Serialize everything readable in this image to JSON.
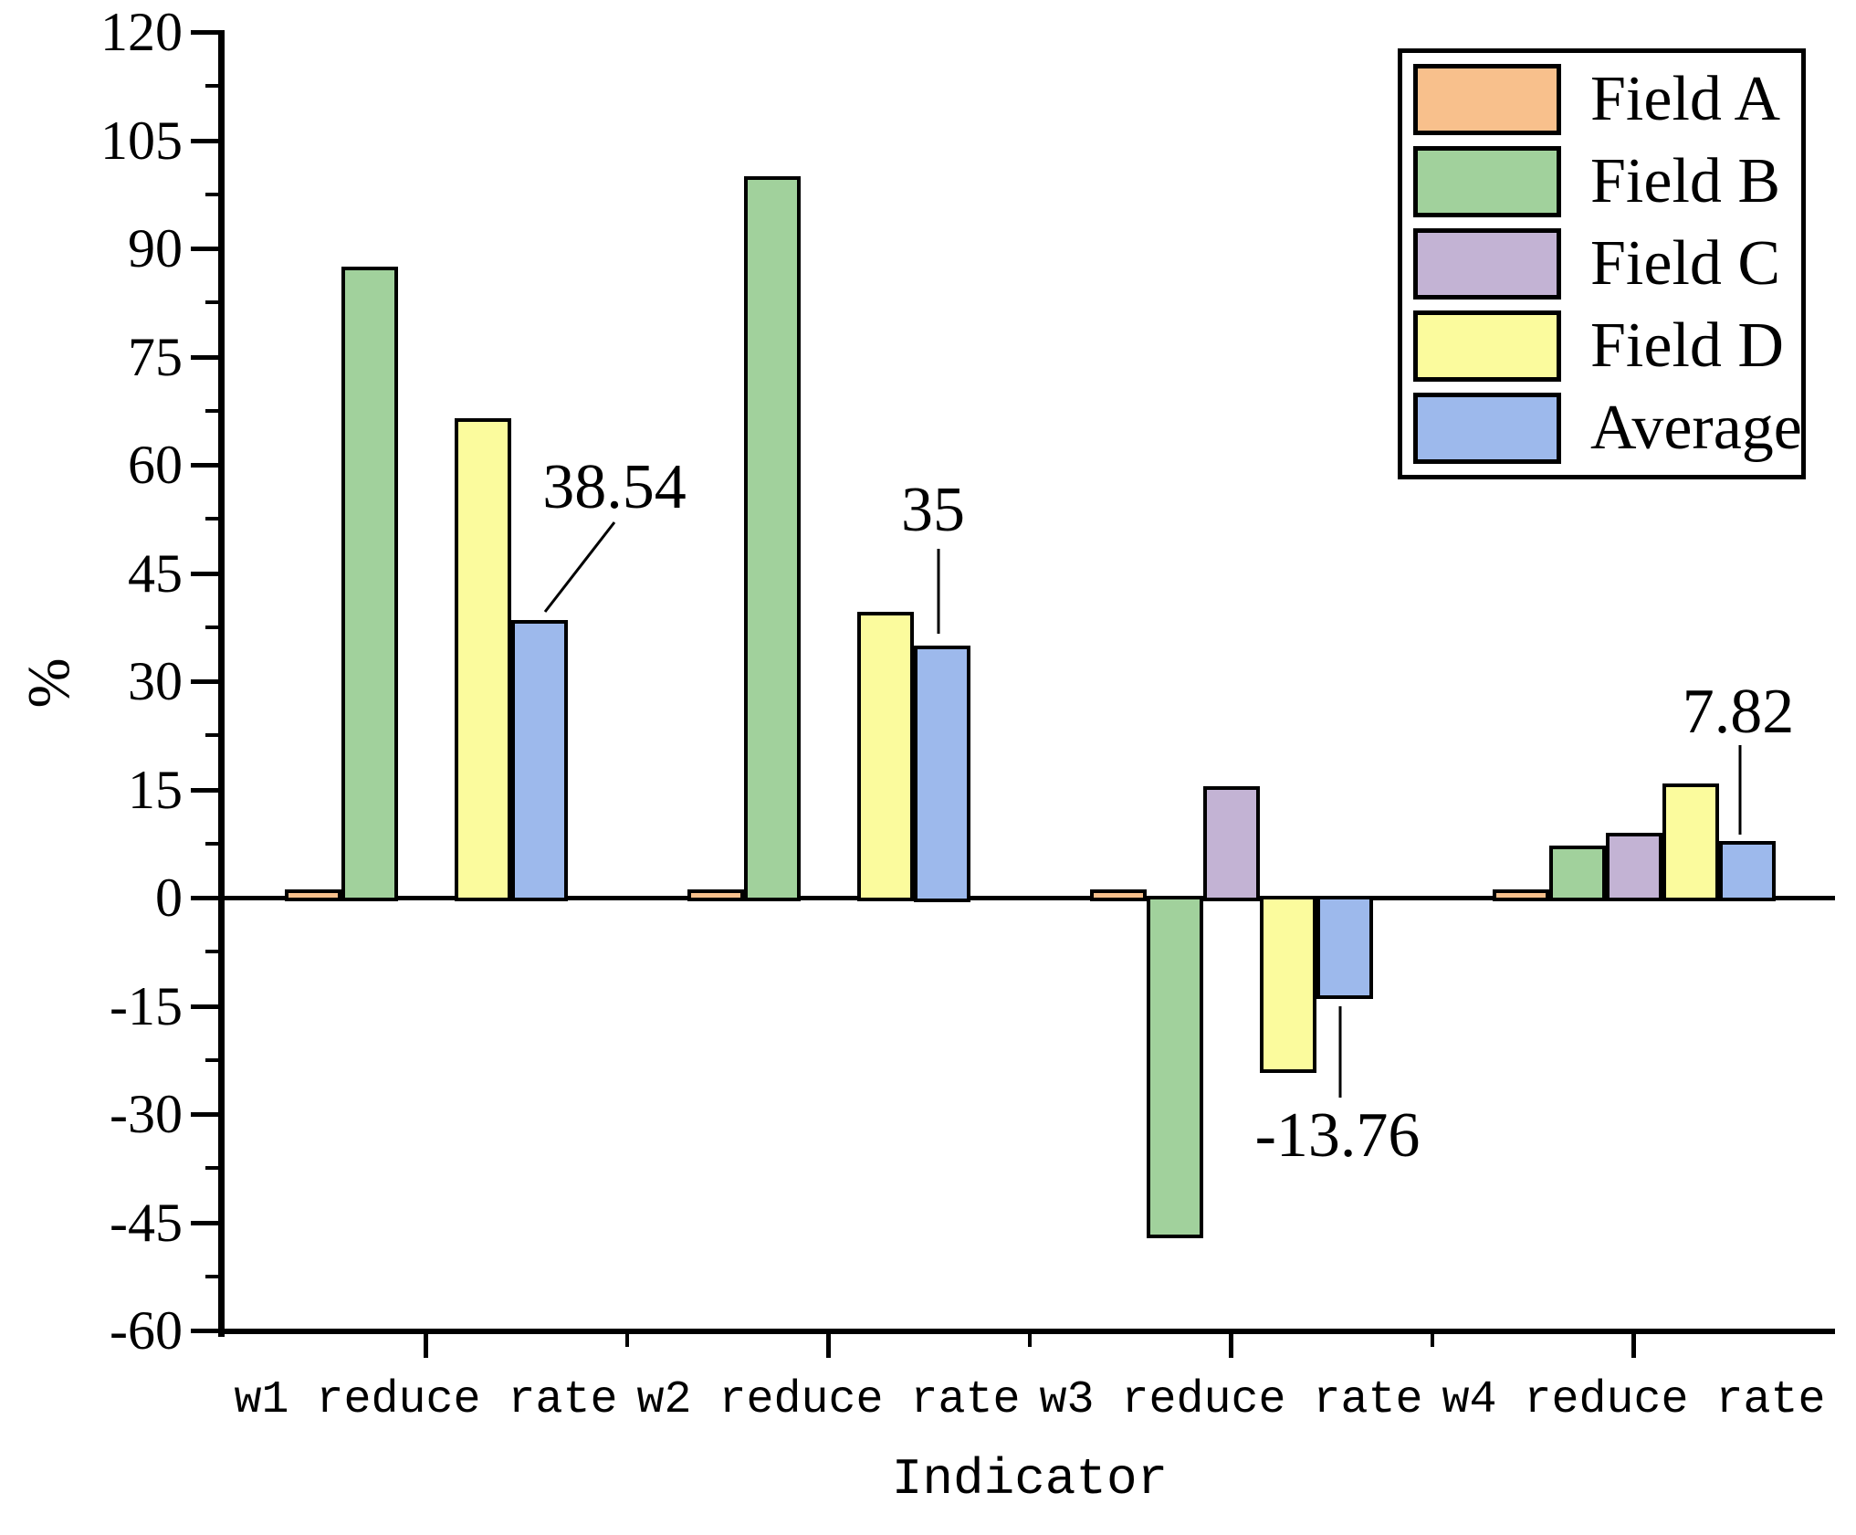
{
  "chart_data": {
    "type": "bar",
    "title": "",
    "xlabel": "Indicator",
    "ylabel": "%",
    "categories": [
      "w1 reduce rate",
      "w2 reduce rate",
      "w3 reduce rate",
      "w4 reduce rate"
    ],
    "series": [
      {
        "name": "Field A",
        "color": "#F8C08C",
        "values": [
          1.1,
          1.1,
          1.1,
          1.1
        ]
      },
      {
        "name": "Field B",
        "color": "#A1D19C",
        "values": [
          87.5,
          100,
          -47,
          7.2
        ]
      },
      {
        "name": "Field C",
        "color": "#C3B3D4",
        "values": [
          0,
          0,
          15.5,
          9
        ]
      },
      {
        "name": "Field D",
        "color": "#FBFB9D",
        "values": [
          66.5,
          39.6,
          -24,
          15.8
        ]
      },
      {
        "name": "Average",
        "color": "#9DB9EC",
        "values": [
          38.54,
          35,
          -13.76,
          7.82
        ]
      }
    ],
    "annotations": [
      {
        "text": "38.54",
        "category": "w1 reduce rate",
        "series": "Average",
        "value": 38.54
      },
      {
        "text": "35",
        "category": "w2 reduce rate",
        "series": "Average",
        "value": 35
      },
      {
        "text": "-13.76",
        "category": "w3 reduce rate",
        "series": "Average",
        "value": -13.76
      },
      {
        "text": "7.82",
        "category": "w4 reduce rate",
        "series": "Average",
        "value": 7.82
      }
    ],
    "ylim": [
      -60,
      120
    ],
    "yticks": [
      120,
      105,
      90,
      75,
      60,
      45,
      30,
      15,
      0,
      -15,
      -30,
      -45,
      -60
    ],
    "ytick_minor_step": 7.5,
    "legend_position": "upper right",
    "grid": false,
    "bar_edge_color": "#000000"
  }
}
